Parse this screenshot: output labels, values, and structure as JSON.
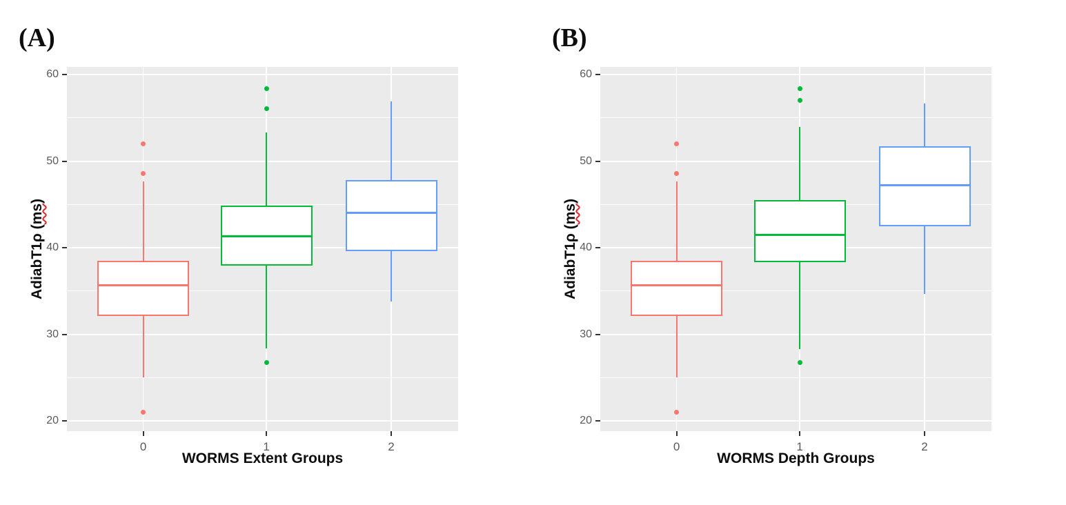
{
  "page": {
    "background": "#ffffff",
    "panel_background": "#EBEBEB",
    "gridline_color": "#ffffff",
    "tick_text_color": "#595959",
    "axis_title_color": "#0d0d0d"
  },
  "chart_data": [
    {
      "type": "boxplot",
      "panel_label": "(A)",
      "xlabel": "WORMS Extent Groups",
      "ylabel": "AdiabT1ρ (ms)",
      "ylabel_prefix": "AdiabT1ρ (",
      "ylabel_ms": "ms",
      "ylabel_suffix": ")",
      "categories": [
        "0",
        "1",
        "2"
      ],
      "ylim": [
        18.8,
        60.9
      ],
      "yticks_major": [
        20,
        30,
        40,
        50,
        60
      ],
      "yticks_minor": [
        25,
        35,
        45,
        55
      ],
      "grid": "on",
      "legend": "none",
      "groups": [
        {
          "category": "0",
          "color": "#F8766D",
          "whisker_low": 25.0,
          "q1": 32.1,
          "median": 35.7,
          "q3": 38.5,
          "whisker_high": 47.7,
          "outliers": [
            21.0,
            48.6,
            52.0
          ]
        },
        {
          "category": "1",
          "color": "#00BA38",
          "whisker_low": 28.4,
          "q1": 37.9,
          "median": 41.3,
          "q3": 44.9,
          "whisker_high": 53.3,
          "outliers": [
            26.7,
            56.1,
            58.4
          ]
        },
        {
          "category": "2",
          "color": "#619CFF",
          "whisker_low": 33.8,
          "q1": 39.6,
          "median": 44.0,
          "q3": 47.8,
          "whisker_high": 56.9,
          "outliers": []
        }
      ]
    },
    {
      "type": "boxplot",
      "panel_label": "(B)",
      "xlabel": "WORMS Depth Groups",
      "ylabel": "AdiabT1ρ (ms)",
      "ylabel_prefix": "AdiabT1ρ (",
      "ylabel_ms": "ms",
      "ylabel_suffix": ")",
      "categories": [
        "0",
        "1",
        "2"
      ],
      "ylim": [
        18.8,
        60.9
      ],
      "yticks_major": [
        20,
        30,
        40,
        50,
        60
      ],
      "yticks_minor": [
        25,
        35,
        45,
        55
      ],
      "grid": "on",
      "legend": "none",
      "groups": [
        {
          "category": "0",
          "color": "#F8766D",
          "whisker_low": 25.0,
          "q1": 32.1,
          "median": 35.7,
          "q3": 38.5,
          "whisker_high": 47.7,
          "outliers": [
            21.0,
            48.6,
            52.0
          ]
        },
        {
          "category": "1",
          "color": "#00BA38",
          "whisker_low": 28.3,
          "q1": 38.3,
          "median": 41.5,
          "q3": 45.5,
          "whisker_high": 54.0,
          "outliers": [
            26.7,
            57.0,
            58.4
          ]
        },
        {
          "category": "2",
          "color": "#619CFF",
          "whisker_low": 34.7,
          "q1": 42.5,
          "median": 47.2,
          "q3": 51.7,
          "whisker_high": 56.7,
          "outliers": []
        }
      ]
    }
  ]
}
